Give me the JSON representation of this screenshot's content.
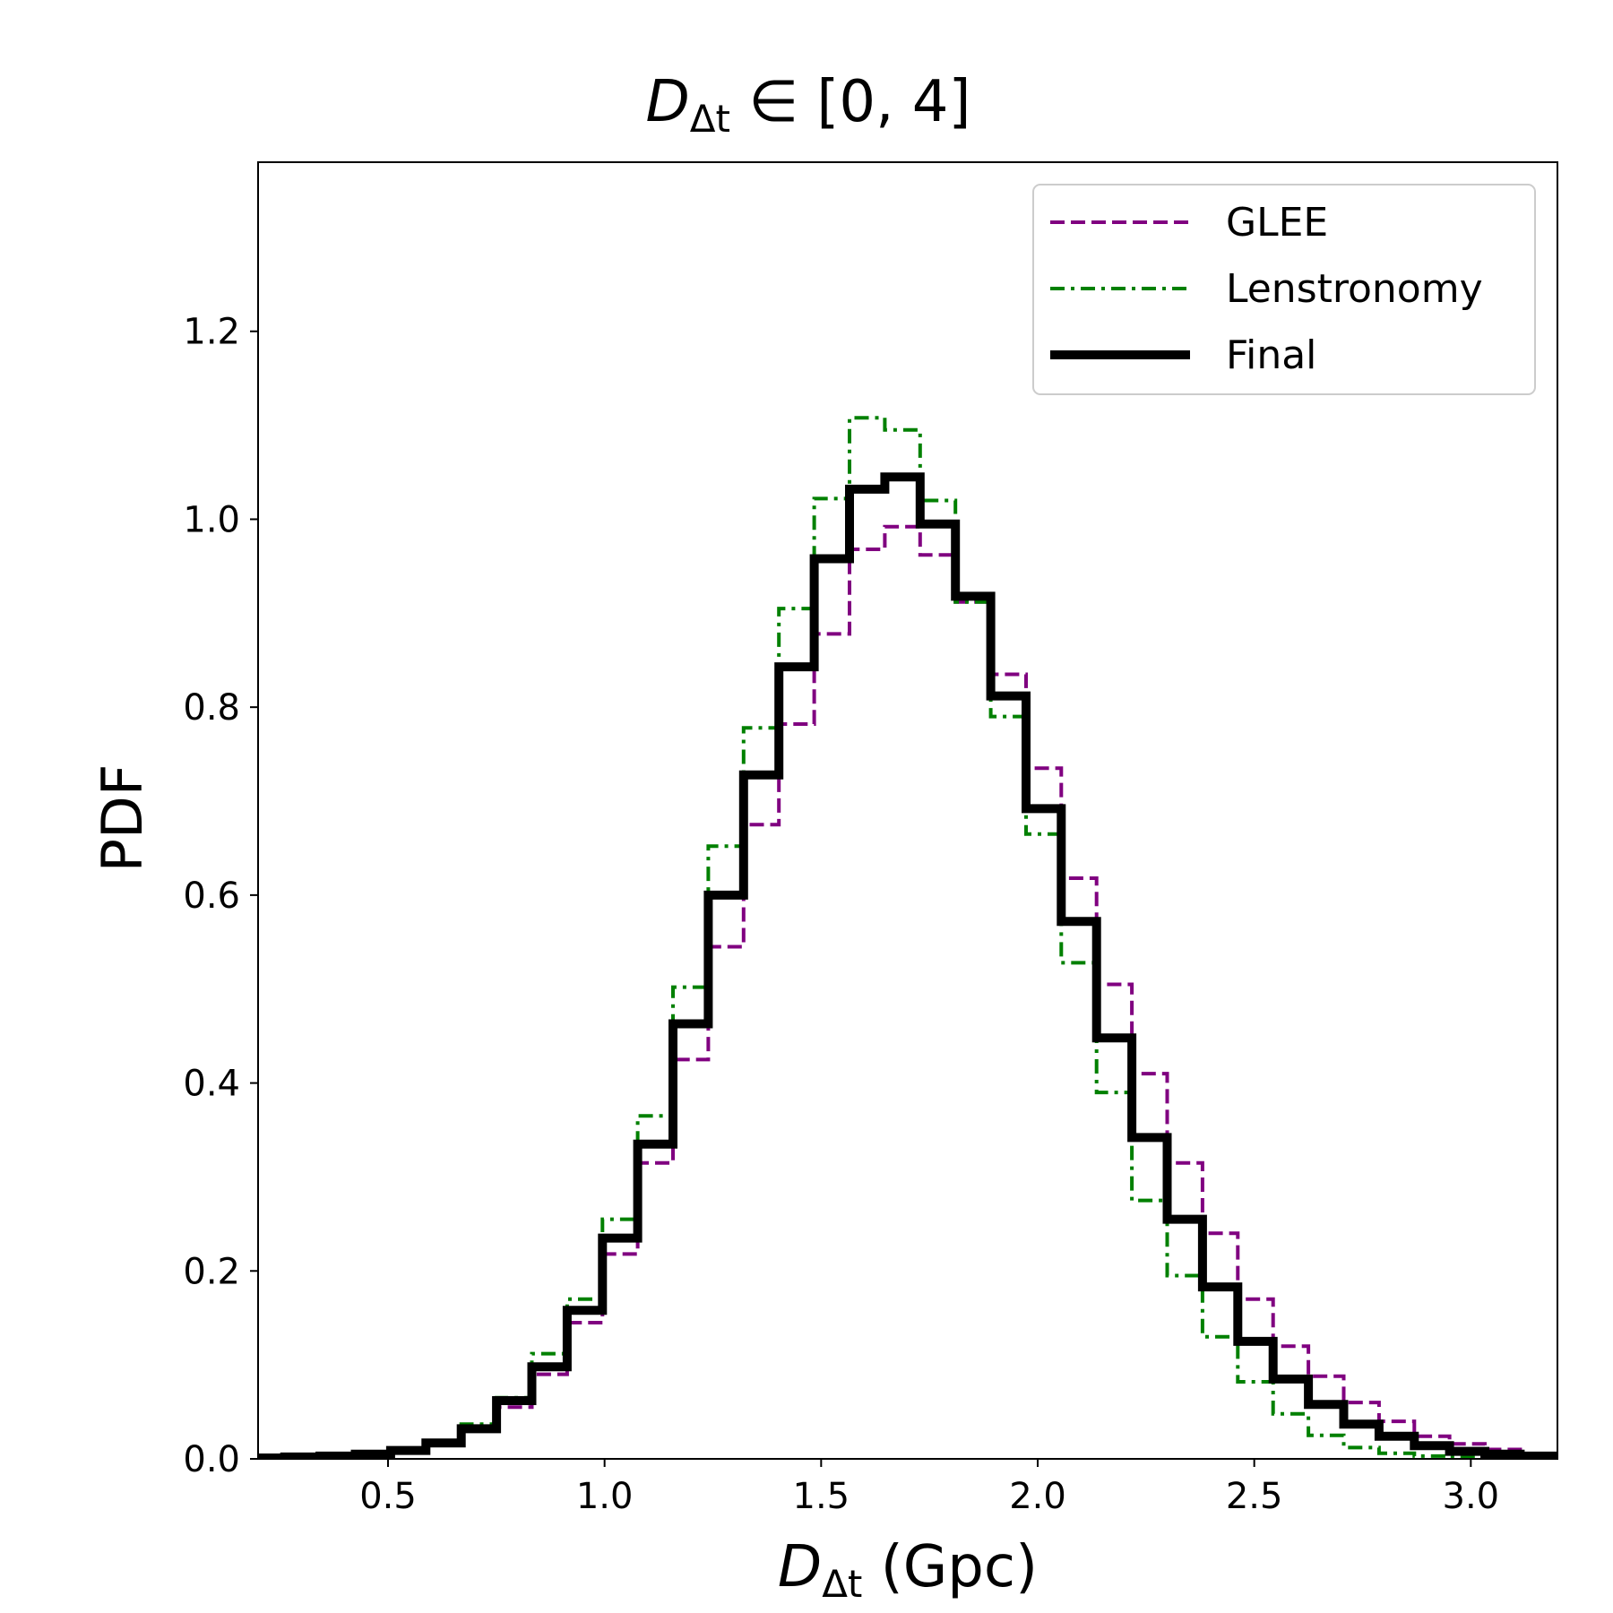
{
  "chart_data": {
    "type": "step-histogram",
    "title_main": "D",
    "title_sub": "Δt",
    "title_rest": " ∈ [0, 4]",
    "xlabel_main": "D",
    "xlabel_sub": "Δt",
    "xlabel_rest": " (Gpc)",
    "ylabel": "PDF",
    "xlim": [
      0.2,
      3.2
    ],
    "ylim": [
      0.0,
      1.38
    ],
    "xticks": [
      0.5,
      1.0,
      1.5,
      2.0,
      2.5,
      3.0
    ],
    "xtick_labels": [
      "0.5",
      "1.0",
      "1.5",
      "2.0",
      "2.5",
      "3.0"
    ],
    "yticks": [
      0.0,
      0.2,
      0.4,
      0.6,
      0.8,
      1.0,
      1.2
    ],
    "ytick_labels": [
      "0.0",
      "0.2",
      "0.4",
      "0.6",
      "0.8",
      "1.0",
      "1.2"
    ],
    "bin_start": 0.18,
    "bin_width": 0.0815,
    "legend_position": "top-right",
    "series": [
      {
        "name": "GLEE",
        "color": "#800080",
        "style": "dashed",
        "values": [
          0.001,
          0.002,
          0.003,
          0.005,
          0.009,
          0.016,
          0.03,
          0.055,
          0.09,
          0.145,
          0.218,
          0.315,
          0.425,
          0.545,
          0.675,
          0.782,
          0.878,
          0.968,
          0.992,
          0.962,
          0.912,
          0.835,
          0.735,
          0.618,
          0.505,
          0.41,
          0.315,
          0.24,
          0.17,
          0.12,
          0.088,
          0.06,
          0.04,
          0.024,
          0.016,
          0.01,
          0.005,
          0.003
        ]
      },
      {
        "name": "Lenstronomy",
        "color": "#008000",
        "style": "dashdot",
        "values": [
          0.001,
          0.002,
          0.003,
          0.005,
          0.009,
          0.018,
          0.037,
          0.065,
          0.112,
          0.17,
          0.255,
          0.365,
          0.502,
          0.652,
          0.778,
          0.905,
          1.022,
          1.108,
          1.095,
          1.02,
          0.912,
          0.79,
          0.665,
          0.528,
          0.39,
          0.275,
          0.195,
          0.13,
          0.082,
          0.048,
          0.025,
          0.012,
          0.006,
          0.003,
          0.002,
          0.001,
          0.001,
          0.001
        ]
      },
      {
        "name": "Final",
        "color": "#000000",
        "style": "solid",
        "values": [
          0.001,
          0.002,
          0.003,
          0.005,
          0.009,
          0.017,
          0.032,
          0.062,
          0.098,
          0.158,
          0.235,
          0.335,
          0.463,
          0.6,
          0.728,
          0.843,
          0.958,
          1.032,
          1.045,
          0.995,
          0.918,
          0.812,
          0.692,
          0.572,
          0.448,
          0.342,
          0.255,
          0.183,
          0.125,
          0.085,
          0.058,
          0.037,
          0.024,
          0.014,
          0.008,
          0.005,
          0.003,
          0.002
        ]
      }
    ]
  }
}
